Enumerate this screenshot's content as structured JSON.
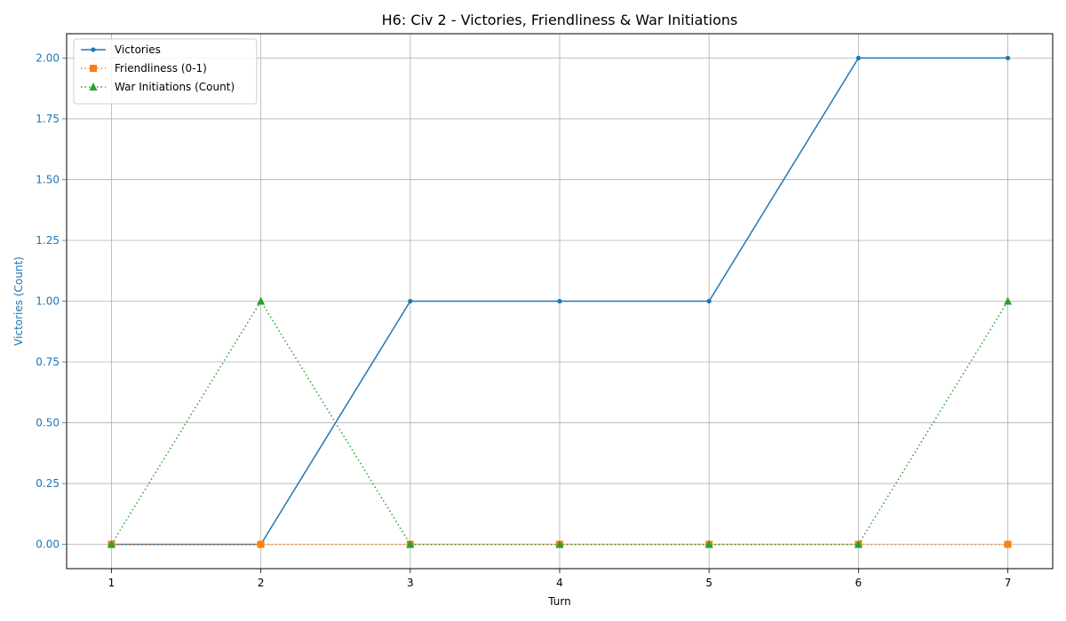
{
  "chart_data": {
    "type": "line",
    "title": "H6: Civ 2 - Victories, Friendliness & War Initiations",
    "xlabel": "Turn",
    "ylabel": "Victories (Count)",
    "x": [
      1,
      2,
      3,
      4,
      5,
      6,
      7
    ],
    "xlim": [
      0.7,
      7.3
    ],
    "ylim": [
      -0.1,
      2.1
    ],
    "yticks": [
      0.0,
      0.25,
      0.5,
      0.75,
      1.0,
      1.25,
      1.5,
      1.75,
      2.0
    ],
    "ytick_labels": [
      "0.00",
      "0.25",
      "0.50",
      "0.75",
      "1.00",
      "1.25",
      "1.50",
      "1.75",
      "2.00"
    ],
    "xtick_labels": [
      "1",
      "2",
      "3",
      "4",
      "5",
      "6",
      "7"
    ],
    "grid": true,
    "legend_position": "upper-left",
    "ylabel_color": "#1f77b4",
    "series": [
      {
        "name": "Victories",
        "values": [
          0,
          0,
          1,
          1,
          1,
          2,
          2
        ],
        "color": "#1f77b4",
        "line_style": "solid",
        "marker": "circle-small"
      },
      {
        "name": "Friendliness (0-1)",
        "values": [
          0,
          0,
          0,
          0,
          0,
          0,
          0
        ],
        "color": "#ff7f0e",
        "line_style": "dotted",
        "marker": "square"
      },
      {
        "name": "War Initiations (Count)",
        "values": [
          0,
          1,
          0,
          0,
          0,
          0,
          1
        ],
        "color": "#2ca02c",
        "line_style": "dotted",
        "marker": "triangle"
      }
    ]
  }
}
